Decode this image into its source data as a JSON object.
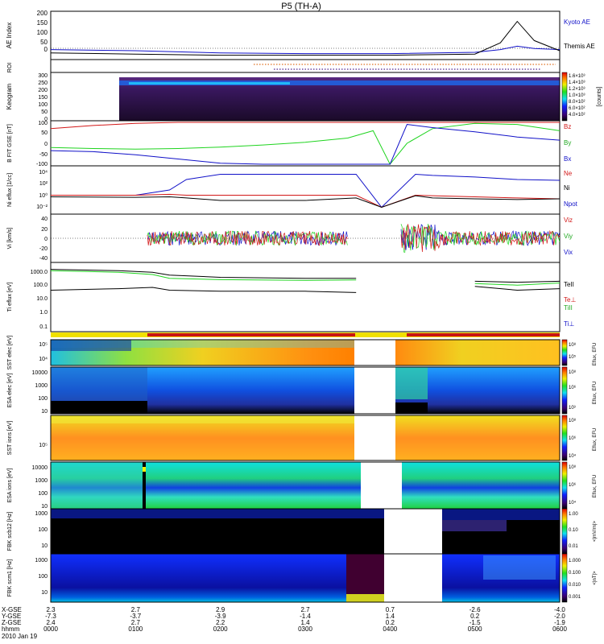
{
  "header": {
    "title": "P5 (TH-A)"
  },
  "colors": {
    "blue": "#1010c8",
    "red": "#d21818",
    "green": "#1fd41f",
    "black": "#000000",
    "orange_dots": "#e07020",
    "purple_dots": "#502090",
    "yellow_bar": "#f0e000",
    "red_bar": "#c81414"
  },
  "panels": {
    "ae": {
      "ylabel": "AE Index",
      "ticks": [
        "200",
        "150",
        "100",
        "50",
        "0"
      ],
      "legend": [
        "Kyoto AE",
        "Themis AE"
      ]
    },
    "roi": {
      "ylabel": "ROI"
    },
    "keogram": {
      "ylabel": "Keogram",
      "ticks": [
        "300",
        "250",
        "200",
        "150",
        "100",
        "50",
        "0"
      ],
      "cbar": [
        "1.6×10³",
        "1.4×10³",
        "1.2×10³",
        "1.0×10³",
        "8.0×10²",
        "6.0×10²",
        "4.0×10²"
      ],
      "cbar_label": "[counts]"
    },
    "bfit": {
      "ylabel": "B FIT GSE [nT]",
      "ticks": [
        "100",
        "50",
        "0",
        "-50",
        "-100"
      ],
      "legend": [
        "Bz",
        "By",
        "Bx"
      ]
    },
    "ni": {
      "ylabel": "Ni eflux [1/cc]",
      "ticks": [
        "10⁴",
        "10²",
        "10⁰",
        "10⁻²"
      ],
      "legend": [
        "Ne",
        "Ni",
        "Npot"
      ]
    },
    "vi": {
      "ylabel": "Vi [km/s]",
      "ticks": [
        "40",
        "20",
        "0",
        "-20",
        "-40"
      ],
      "legend": [
        "Viz",
        "Viy",
        "Vix"
      ]
    },
    "ti": {
      "ylabel": "Ti eflux [eV]",
      "ticks": [
        "1000.0",
        "100.0",
        "10.0",
        "1.0",
        "0.1"
      ],
      "legend": [
        "TeII",
        "Te⊥",
        "TiII",
        "Ti⊥"
      ]
    },
    "sst_e": {
      "ylabel": "SST elec [eV]",
      "ticks": [
        "10⁵",
        "10⁴"
      ],
      "cbar": [
        "10⁸",
        "10⁷",
        "10⁶",
        "10⁵",
        "10⁴",
        "10³"
      ],
      "cbar_label": "Eflux, EFU"
    },
    "esa_e": {
      "ylabel": "ESA elec [eV]",
      "ticks": [
        "10000",
        "1000",
        "100",
        "10"
      ],
      "cbar": [
        "10⁸",
        "10⁷",
        "10⁶",
        "10⁵",
        "10⁴",
        "10³"
      ],
      "cbar_label": "Eflux, EFU"
    },
    "sst_i": {
      "ylabel": "SST ions [eV]",
      "ticks": [
        "10⁵"
      ],
      "cbar": [
        "10⁸",
        "10⁷",
        "10⁶",
        "10⁵",
        "10⁴"
      ],
      "cbar_label": "Eflux, EFU"
    },
    "esa_i": {
      "ylabel": "ESA ions [eV]",
      "ticks": [
        "10000",
        "1000",
        "100",
        "10"
      ],
      "cbar": [
        "10⁸",
        "10⁷",
        "10⁶",
        "10⁵",
        "10⁴"
      ],
      "cbar_label": "Eflux, EFU"
    },
    "fbk_b": {
      "ylabel": "FBK scb12 [Hz]",
      "ticks": [
        "1000",
        "100",
        "10"
      ],
      "cbar": [
        "1.00",
        "0.10",
        "0.01"
      ],
      "cbar_label": "<|mV/m|>"
    },
    "fbk_e": {
      "ylabel": "FBK scm1 [Hz]",
      "ticks": [
        "1000",
        "100",
        "10"
      ],
      "cbar": [
        "1.000",
        "0.100",
        "0.010",
        "0.001"
      ],
      "cbar_label": "<|nT|>"
    }
  },
  "xaxis": {
    "row_labels": [
      "X-GSE",
      "Y-GSE",
      "Z-GSE",
      "hhmm",
      "2010 Jan 19"
    ],
    "columns": [
      {
        "x": "2.3",
        "y": "-7.3",
        "z": "2.4",
        "t": "0000"
      },
      {
        "x": "2.7",
        "y": "-3.7",
        "z": "2.7",
        "t": "0100"
      },
      {
        "x": "2.9",
        "y": "-3.9",
        "z": "2.2",
        "t": "0200"
      },
      {
        "x": "2.7",
        "y": "-1.4",
        "z": "1.4",
        "t": "0300"
      },
      {
        "x": "0.7",
        "y": "1.4",
        "z": "0.2",
        "t": "0400"
      },
      {
        "x": "-2.6",
        "y": "0.2",
        "z": "-1.5",
        "t": "0500"
      },
      {
        "x": "-4.0",
        "y": "-2.0",
        "z": "-1.9",
        "t": "0600"
      }
    ]
  },
  "chart_data": [
    {
      "type": "line",
      "title": "P5 (TH-A)",
      "ylabel": "AE Index",
      "ylim": [
        0,
        200
      ],
      "x_hours": [
        0,
        1,
        2,
        3,
        4,
        5,
        5.3,
        5.5,
        5.7,
        6
      ],
      "series": [
        {
          "name": "Kyoto AE",
          "values": [
            30,
            25,
            15,
            12,
            12,
            18,
            30,
            45,
            35,
            30
          ]
        },
        {
          "name": "Themis AE",
          "values": [
            15,
            10,
            5,
            5,
            5,
            10,
            60,
            155,
            70,
            25
          ]
        }
      ]
    },
    {
      "type": "heatmap",
      "ylabel": "Keogram",
      "ylim": [
        0,
        300
      ],
      "x_start_hours": 0.76
    },
    {
      "type": "line",
      "ylabel": "B FIT GSE [nT]",
      "ylim": [
        -100,
        100
      ],
      "x_hours": [
        0,
        0.5,
        1,
        1.5,
        2,
        2.5,
        3,
        3.5,
        3.8,
        4,
        4.2,
        4.5,
        5,
        5.5,
        6
      ],
      "series": [
        {
          "name": "Bz",
          "values": [
            70,
            85,
            95,
            100,
            100,
            100,
            100,
            100,
            100,
            100,
            100,
            100,
            100,
            100,
            100
          ]
        },
        {
          "name": "By",
          "values": [
            -20,
            -25,
            -28,
            -25,
            -18,
            -8,
            5,
            25,
            60,
            -100,
            0,
            70,
            95,
            90,
            60
          ]
        },
        {
          "name": "Bx",
          "values": [
            -35,
            -40,
            -55,
            -75,
            -95,
            -100,
            -100,
            -100,
            -100,
            -100,
            90,
            75,
            55,
            30,
            15
          ]
        }
      ]
    },
    {
      "type": "line",
      "ylabel": "Ni eflux [1/cc]",
      "ylim": [
        0.001,
        100000
      ],
      "log": true,
      "x_hours": [
        0,
        1,
        1.4,
        1.6,
        2,
        3,
        3.6,
        3.9,
        4.3,
        4.5,
        5,
        5.5,
        6
      ],
      "series": [
        {
          "name": "Ne",
          "values": [
            1,
            1,
            10,
            1000,
            10000,
            10000,
            10000,
            0.005,
            10000,
            6000,
            3000,
            1000,
            700
          ]
        },
        {
          "name": "Ni",
          "values": [
            1,
            1,
            1.5,
            1,
            1,
            1,
            1,
            0.005,
            1,
            0.8,
            0.5,
            0.3,
            0.2
          ]
        },
        {
          "name": "Npot",
          "values": [
            0.5,
            0.4,
            0.5,
            0.3,
            0.1,
            0.1,
            0.3,
            0.005,
            0.8,
            0.3,
            0.2,
            0.15,
            0.2
          ]
        }
      ]
    },
    {
      "type": "line",
      "ylabel": "Vi [km/s]",
      "ylim": [
        -50,
        50
      ]
    },
    {
      "type": "line",
      "ylabel": "Ti eflux [eV]",
      "ylim": [
        0.1,
        3000
      ],
      "log": true
    }
  ]
}
